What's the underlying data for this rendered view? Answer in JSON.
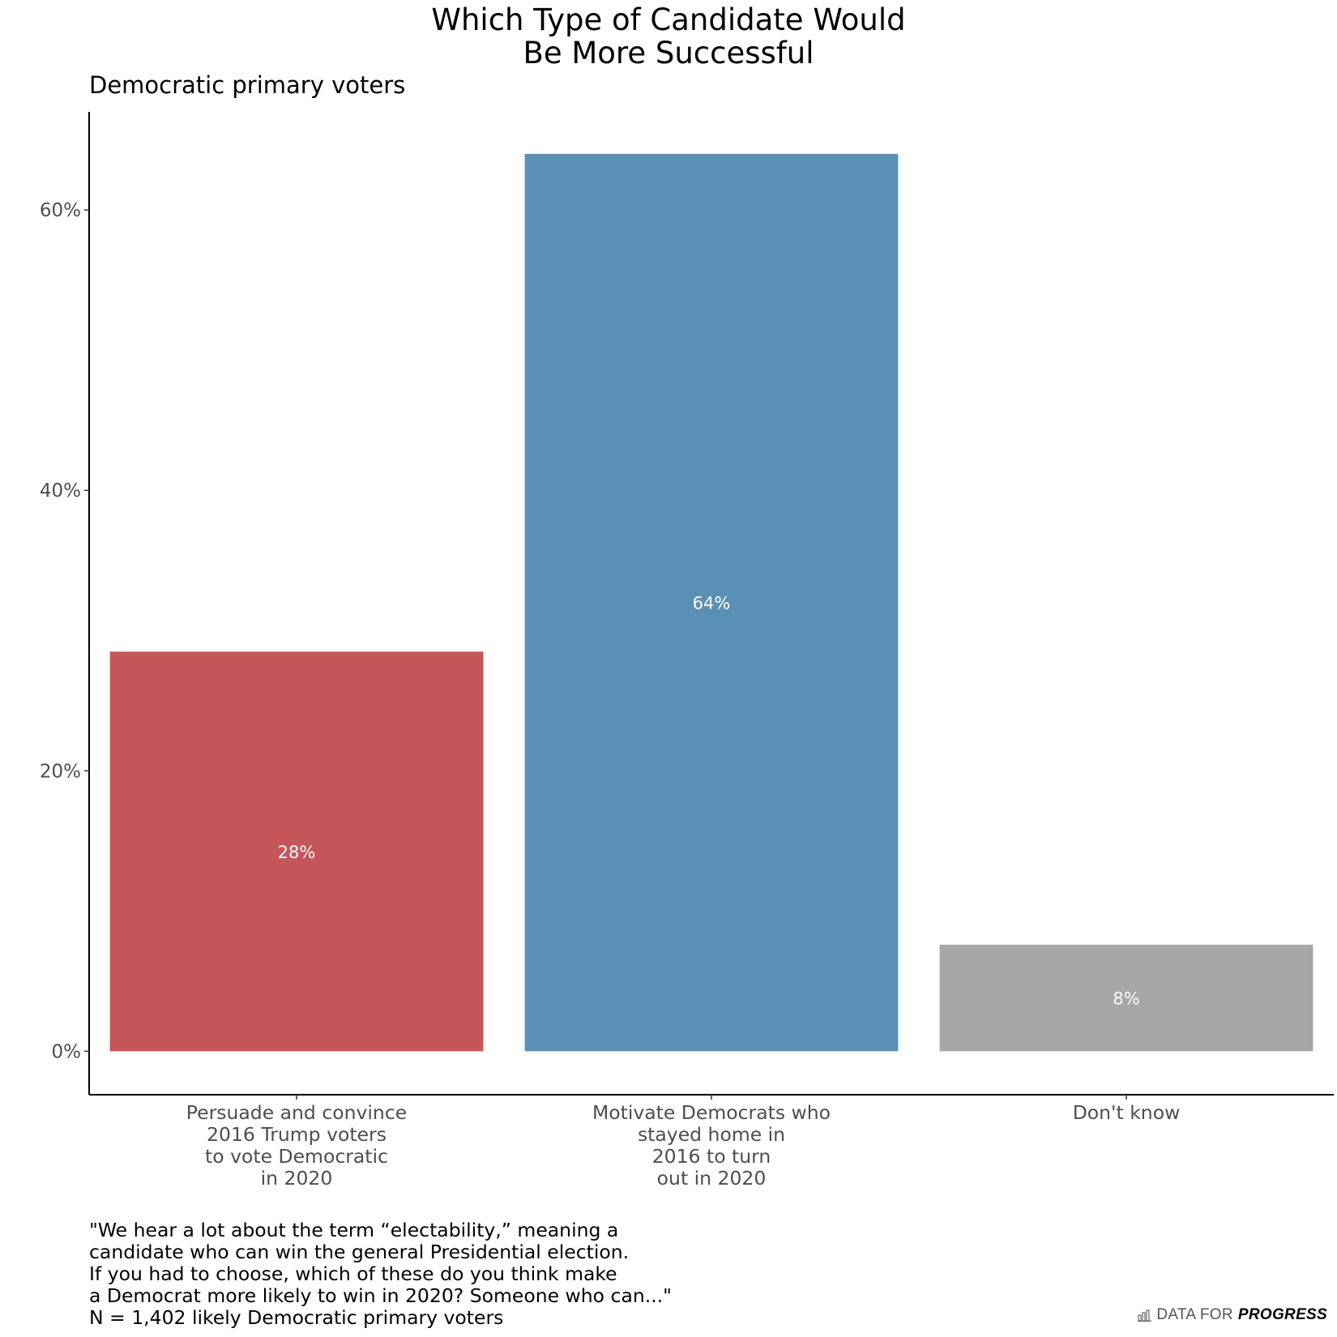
{
  "chart_data": {
    "type": "bar",
    "title": [
      "Which Type of Candidate Would",
      "Be More Successful"
    ],
    "subtitle": "Democratic primary voters",
    "categories": [
      [
        "Persuade and convince",
        "2016 Trump voters",
        "to vote Democratic",
        "in 2020"
      ],
      [
        "Motivate Democrats who",
        "stayed home in",
        "2016 to turn",
        "out in 2020"
      ],
      [
        "Don't know"
      ]
    ],
    "values": [
      28.5,
      64,
      7.6
    ],
    "data_labels": [
      "28%",
      "64%",
      "8%"
    ],
    "colors": [
      "#c6555a",
      "#5b90b6",
      "#a6a6a6"
    ],
    "ylim": [
      -3.1,
      67
    ],
    "yticks": [
      0,
      20,
      40,
      60
    ],
    "ytick_labels": [
      "0%",
      "20%",
      "40%",
      "60%"
    ],
    "grid": false
  },
  "caption": [
    "\"We hear a lot about the term “electability,” meaning a",
    "candidate who can win the general Presidential election.",
    "If you had to choose, which of these do you think make",
    "a Democrat more likely to win in 2020? Someone who can...\"",
    "N = 1,402 likely Democratic primary voters"
  ],
  "brand": {
    "light": "DATA FOR",
    "bold": "PROGRESS",
    "icon": "bar-chart-icon"
  }
}
